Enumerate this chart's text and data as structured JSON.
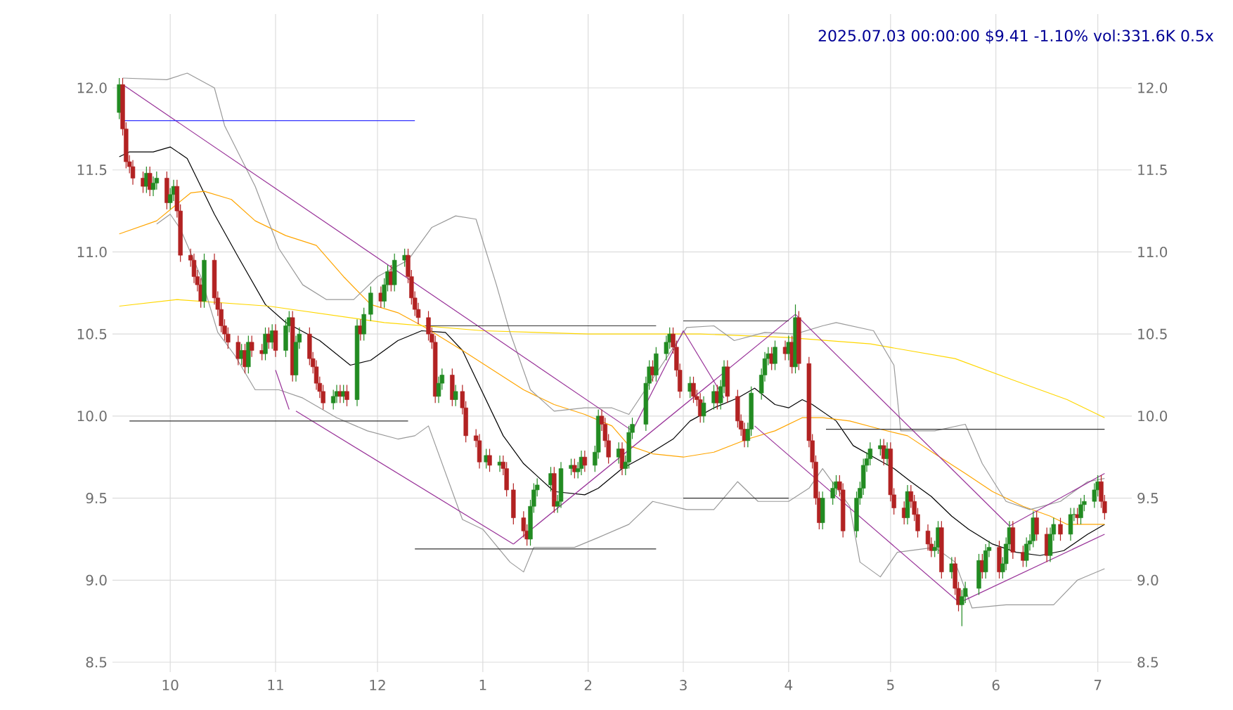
{
  "chart_data": {
    "type": "candlestick",
    "title": "2025.07.03 00:00:00 $9.41 -1.10% vol:331.6K 0.5x",
    "x": [
      "2024-09-16",
      "2024-09-17",
      "2024-09-18",
      "2024-09-19",
      "2024-09-20",
      "2024-09-23",
      "2024-09-24",
      "2024-09-25",
      "2024-09-26",
      "2024-09-27",
      "2024-09-30",
      "2024-10-01",
      "2024-10-02",
      "2024-10-03",
      "2024-10-04",
      "2024-10-07",
      "2024-10-08",
      "2024-10-09",
      "2024-10-10",
      "2024-10-11",
      "2024-10-14",
      "2024-10-15",
      "2024-10-16",
      "2024-10-17",
      "2024-10-18",
      "2024-10-21",
      "2024-10-22",
      "2024-10-23",
      "2024-10-24",
      "2024-10-25",
      "2024-10-28",
      "2024-10-29",
      "2024-10-30",
      "2024-10-31",
      "2024-11-01",
      "2024-11-04",
      "2024-11-05",
      "2024-11-06",
      "2024-11-07",
      "2024-11-08",
      "2024-11-11",
      "2024-11-12",
      "2024-11-13",
      "2024-11-14",
      "2024-11-15",
      "2024-11-18",
      "2024-11-19",
      "2024-11-20",
      "2024-11-21",
      "2024-11-22",
      "2024-11-25",
      "2024-11-26",
      "2024-11-27",
      "2024-11-29",
      "2024-12-02",
      "2024-12-03",
      "2024-12-04",
      "2024-12-05",
      "2024-12-06",
      "2024-12-09",
      "2024-12-10",
      "2024-12-11",
      "2024-12-12",
      "2024-12-13",
      "2024-12-16",
      "2024-12-17",
      "2024-12-18",
      "2024-12-19",
      "2024-12-20",
      "2024-12-23",
      "2024-12-24",
      "2024-12-26",
      "2024-12-27",
      "2024-12-30",
      "2024-12-31",
      "2025-01-02",
      "2025-01-03",
      "2025-01-06",
      "2025-01-07",
      "2025-01-08",
      "2025-01-10",
      "2025-01-13",
      "2025-01-14",
      "2025-01-15",
      "2025-01-16",
      "2025-01-17",
      "2025-01-21",
      "2025-01-22",
      "2025-01-23",
      "2025-01-24",
      "2025-01-27",
      "2025-01-28",
      "2025-01-29",
      "2025-01-30",
      "2025-01-31",
      "2025-02-03",
      "2025-02-04",
      "2025-02-05",
      "2025-02-06",
      "2025-02-07",
      "2025-02-10",
      "2025-02-11",
      "2025-02-12",
      "2025-02-13",
      "2025-02-14",
      "2025-02-18",
      "2025-02-19",
      "2025-02-20",
      "2025-02-21",
      "2025-02-24",
      "2025-02-25",
      "2025-02-26",
      "2025-02-27",
      "2025-02-28",
      "2025-03-03",
      "2025-03-04",
      "2025-03-05",
      "2025-03-06",
      "2025-03-07",
      "2025-03-10",
      "2025-03-11",
      "2025-03-12",
      "2025-03-13",
      "2025-03-14",
      "2025-03-17",
      "2025-03-18",
      "2025-03-19",
      "2025-03-20",
      "2025-03-21",
      "2025-03-24",
      "2025-03-25",
      "2025-03-26",
      "2025-03-27",
      "2025-03-28",
      "2025-03-31",
      "2025-04-01",
      "2025-04-02",
      "2025-04-03",
      "2025-04-04",
      "2025-04-07",
      "2025-04-08",
      "2025-04-09",
      "2025-04-10",
      "2025-04-11",
      "2025-04-14",
      "2025-04-15",
      "2025-04-16",
      "2025-04-17",
      "2025-04-21",
      "2025-04-22",
      "2025-04-23",
      "2025-04-24",
      "2025-04-25",
      "2025-04-28",
      "2025-04-29",
      "2025-04-30",
      "2025-05-01",
      "2025-05-02",
      "2025-05-05",
      "2025-05-06",
      "2025-05-07",
      "2025-05-08",
      "2025-05-09",
      "2025-05-12",
      "2025-05-13",
      "2025-05-14",
      "2025-05-15",
      "2025-05-16",
      "2025-05-19",
      "2025-05-20",
      "2025-05-21",
      "2025-05-22",
      "2025-05-23",
      "2025-05-27",
      "2025-05-28",
      "2025-05-29",
      "2025-05-30",
      "2025-06-02",
      "2025-06-03",
      "2025-06-04",
      "2025-06-05",
      "2025-06-06",
      "2025-06-09",
      "2025-06-10",
      "2025-06-11",
      "2025-06-12",
      "2025-06-13",
      "2025-06-16",
      "2025-06-17",
      "2025-06-18",
      "2025-06-20",
      "2025-06-23",
      "2025-06-24",
      "2025-06-25",
      "2025-06-26",
      "2025-06-27",
      "2025-06-30",
      "2025-07-01",
      "2025-07-02",
      "2025-07-03"
    ],
    "ohlc": [
      [
        11.85,
        12.06,
        11.81,
        12.02
      ],
      [
        12.02,
        12.06,
        11.71,
        11.75
      ],
      [
        11.75,
        11.79,
        11.51,
        11.55
      ],
      [
        11.55,
        11.59,
        11.48,
        11.52
      ],
      [
        11.52,
        11.56,
        11.41,
        11.45
      ],
      [
        11.45,
        11.49,
        11.36,
        11.4
      ],
      [
        11.4,
        11.52,
        11.36,
        11.48
      ],
      [
        11.48,
        11.52,
        11.34,
        11.38
      ],
      [
        11.38,
        11.46,
        11.34,
        11.42
      ],
      [
        11.42,
        11.49,
        11.38,
        11.45
      ],
      [
        11.45,
        11.49,
        11.26,
        11.3
      ],
      [
        11.3,
        11.39,
        11.26,
        11.35
      ],
      [
        11.35,
        11.44,
        11.31,
        11.4
      ],
      [
        11.4,
        11.44,
        11.21,
        11.25
      ],
      [
        11.25,
        11.29,
        10.94,
        10.98
      ],
      [
        10.98,
        11.02,
        10.91,
        10.95
      ],
      [
        10.95,
        10.99,
        10.81,
        10.85
      ],
      [
        10.85,
        10.89,
        10.76,
        10.8
      ],
      [
        10.8,
        10.84,
        10.66,
        10.7
      ],
      [
        10.7,
        10.99,
        10.66,
        10.95
      ],
      [
        10.95,
        10.99,
        10.68,
        10.72
      ],
      [
        10.72,
        10.76,
        10.61,
        10.65
      ],
      [
        10.65,
        10.69,
        10.51,
        10.55
      ],
      [
        10.55,
        10.59,
        10.46,
        10.5
      ],
      [
        10.5,
        10.54,
        10.41,
        10.45
      ],
      [
        10.45,
        10.49,
        10.31,
        10.35
      ],
      [
        10.35,
        10.44,
        10.31,
        10.4
      ],
      [
        10.4,
        10.44,
        10.26,
        10.3
      ],
      [
        10.3,
        10.49,
        10.26,
        10.45
      ],
      [
        10.45,
        10.49,
        10.36,
        10.4
      ],
      [
        10.4,
        10.44,
        10.34,
        10.38
      ],
      [
        10.38,
        10.54,
        10.34,
        10.5
      ],
      [
        10.5,
        10.54,
        10.41,
        10.45
      ],
      [
        10.45,
        10.56,
        10.41,
        10.52
      ],
      [
        10.52,
        10.56,
        10.36,
        10.4
      ],
      [
        10.4,
        10.59,
        10.36,
        10.55
      ],
      [
        10.55,
        10.64,
        10.51,
        10.6
      ],
      [
        10.6,
        10.64,
        10.21,
        10.25
      ],
      [
        10.25,
        10.49,
        10.21,
        10.45
      ],
      [
        10.45,
        10.54,
        10.41,
        10.5
      ],
      [
        10.5,
        10.54,
        10.31,
        10.35
      ],
      [
        10.35,
        10.39,
        10.26,
        10.3
      ],
      [
        10.3,
        10.34,
        10.16,
        10.2
      ],
      [
        10.2,
        10.24,
        10.11,
        10.15
      ],
      [
        10.15,
        10.19,
        10.04,
        10.08
      ],
      [
        10.08,
        10.16,
        10.04,
        10.12
      ],
      [
        10.12,
        10.19,
        10.08,
        10.15
      ],
      [
        10.15,
        10.19,
        10.08,
        10.12
      ],
      [
        10.12,
        10.19,
        10.08,
        10.15
      ],
      [
        10.15,
        10.19,
        10.06,
        10.1
      ],
      [
        10.1,
        10.59,
        10.06,
        10.55
      ],
      [
        10.55,
        10.59,
        10.46,
        10.5
      ],
      [
        10.5,
        10.66,
        10.46,
        10.62
      ],
      [
        10.62,
        10.79,
        10.58,
        10.75
      ],
      [
        10.75,
        10.79,
        10.66,
        10.7
      ],
      [
        10.7,
        10.84,
        10.66,
        10.8
      ],
      [
        10.8,
        10.92,
        10.76,
        10.88
      ],
      [
        10.88,
        10.92,
        10.76,
        10.8
      ],
      [
        10.8,
        10.99,
        10.76,
        10.95
      ],
      [
        10.95,
        11.02,
        10.91,
        10.98
      ],
      [
        10.98,
        11.02,
        10.81,
        10.85
      ],
      [
        10.85,
        10.89,
        10.68,
        10.72
      ],
      [
        10.72,
        10.76,
        10.61,
        10.65
      ],
      [
        10.65,
        10.69,
        10.56,
        10.6
      ],
      [
        10.6,
        10.64,
        10.46,
        10.5
      ],
      [
        10.5,
        10.54,
        10.41,
        10.45
      ],
      [
        10.45,
        10.49,
        10.08,
        10.12
      ],
      [
        10.12,
        10.24,
        10.08,
        10.2
      ],
      [
        10.2,
        10.29,
        10.16,
        10.25
      ],
      [
        10.25,
        10.29,
        10.06,
        10.1
      ],
      [
        10.1,
        10.19,
        10.06,
        10.15
      ],
      [
        10.15,
        10.19,
        10.01,
        10.05
      ],
      [
        10.05,
        10.09,
        9.84,
        9.88
      ],
      [
        9.88,
        9.92,
        9.81,
        9.85
      ],
      [
        9.85,
        9.89,
        9.68,
        9.72
      ],
      [
        9.72,
        9.8,
        9.68,
        9.76
      ],
      [
        9.76,
        9.8,
        9.66,
        9.7
      ],
      [
        9.7,
        9.76,
        9.66,
        9.72
      ],
      [
        9.72,
        9.76,
        9.64,
        9.68
      ],
      [
        9.68,
        9.72,
        9.51,
        9.55
      ],
      [
        9.55,
        9.59,
        9.34,
        9.38
      ],
      [
        9.38,
        9.42,
        9.26,
        9.3
      ],
      [
        9.3,
        9.34,
        9.21,
        9.25
      ],
      [
        9.25,
        9.49,
        9.21,
        9.45
      ],
      [
        9.45,
        9.59,
        9.41,
        9.55
      ],
      [
        9.55,
        9.62,
        9.51,
        9.58
      ],
      [
        9.58,
        9.69,
        9.54,
        9.65
      ],
      [
        9.65,
        9.69,
        9.41,
        9.45
      ],
      [
        9.45,
        9.52,
        9.41,
        9.48
      ],
      [
        9.48,
        9.72,
        9.44,
        9.68
      ],
      [
        9.68,
        9.74,
        9.64,
        9.7
      ],
      [
        9.7,
        9.74,
        9.62,
        9.66
      ],
      [
        9.66,
        9.72,
        9.62,
        9.68
      ],
      [
        9.68,
        9.79,
        9.64,
        9.75
      ],
      [
        9.75,
        9.79,
        9.66,
        9.7
      ],
      [
        9.7,
        9.82,
        9.66,
        9.78
      ],
      [
        9.78,
        10.04,
        9.74,
        10.0
      ],
      [
        10.0,
        10.04,
        9.91,
        9.95
      ],
      [
        9.95,
        9.99,
        9.81,
        9.85
      ],
      [
        9.85,
        9.89,
        9.71,
        9.75
      ],
      [
        9.75,
        9.84,
        9.71,
        9.8
      ],
      [
        9.8,
        9.84,
        9.64,
        9.68
      ],
      [
        9.68,
        9.76,
        9.64,
        9.72
      ],
      [
        9.72,
        9.94,
        9.68,
        9.9
      ],
      [
        9.9,
        9.99,
        9.86,
        9.95
      ],
      [
        9.95,
        10.24,
        9.91,
        10.2
      ],
      [
        10.2,
        10.34,
        10.16,
        10.3
      ],
      [
        10.3,
        10.34,
        10.21,
        10.25
      ],
      [
        10.25,
        10.42,
        10.21,
        10.38
      ],
      [
        10.38,
        10.49,
        10.34,
        10.45
      ],
      [
        10.45,
        10.54,
        10.41,
        10.5
      ],
      [
        10.5,
        10.54,
        10.38,
        10.42
      ],
      [
        10.42,
        10.46,
        10.24,
        10.28
      ],
      [
        10.28,
        10.32,
        10.11,
        10.15
      ],
      [
        10.15,
        10.24,
        10.11,
        10.2
      ],
      [
        10.2,
        10.24,
        10.08,
        10.12
      ],
      [
        10.12,
        10.16,
        10.06,
        10.1
      ],
      [
        10.1,
        10.14,
        9.96,
        10.0
      ],
      [
        10.0,
        10.12,
        9.96,
        10.08
      ],
      [
        10.08,
        10.19,
        10.04,
        10.15
      ],
      [
        10.15,
        10.19,
        10.04,
        10.08
      ],
      [
        10.08,
        10.22,
        10.04,
        10.18
      ],
      [
        10.18,
        10.34,
        10.14,
        10.3
      ],
      [
        10.3,
        10.34,
        10.08,
        10.12
      ],
      [
        10.12,
        10.16,
        9.93,
        9.97
      ],
      [
        9.97,
        10.01,
        9.88,
        9.92
      ],
      [
        9.92,
        9.96,
        9.81,
        9.85
      ],
      [
        9.85,
        9.96,
        9.81,
        9.92
      ],
      [
        9.92,
        10.18,
        9.88,
        10.14
      ],
      [
        10.14,
        10.29,
        10.1,
        10.25
      ],
      [
        10.25,
        10.39,
        10.21,
        10.35
      ],
      [
        10.35,
        10.42,
        10.31,
        10.38
      ],
      [
        10.38,
        10.42,
        10.28,
        10.32
      ],
      [
        10.32,
        10.46,
        10.28,
        10.42
      ],
      [
        10.42,
        10.46,
        10.34,
        10.38
      ],
      [
        10.38,
        10.49,
        10.34,
        10.45
      ],
      [
        10.45,
        10.49,
        10.26,
        10.3
      ],
      [
        10.3,
        10.68,
        10.26,
        10.6
      ],
      [
        10.6,
        10.64,
        10.28,
        10.32
      ],
      [
        10.32,
        10.36,
        9.81,
        9.85
      ],
      [
        9.85,
        9.89,
        9.68,
        9.72
      ],
      [
        9.72,
        9.76,
        9.46,
        9.5
      ],
      [
        9.5,
        9.54,
        9.31,
        9.35
      ],
      [
        9.35,
        9.54,
        9.31,
        9.5
      ],
      [
        9.5,
        9.6,
        9.46,
        9.56
      ],
      [
        9.56,
        9.64,
        9.52,
        9.6
      ],
      [
        9.6,
        9.64,
        9.51,
        9.55
      ],
      [
        9.55,
        9.59,
        9.26,
        9.3
      ],
      [
        9.3,
        9.54,
        9.26,
        9.5
      ],
      [
        9.5,
        9.6,
        9.46,
        9.56
      ],
      [
        9.56,
        9.74,
        9.52,
        9.7
      ],
      [
        9.7,
        9.78,
        9.66,
        9.74
      ],
      [
        9.74,
        9.84,
        9.7,
        9.8
      ],
      [
        9.8,
        9.86,
        9.76,
        9.82
      ],
      [
        9.82,
        9.86,
        9.7,
        9.74
      ],
      [
        9.74,
        9.84,
        9.7,
        9.8
      ],
      [
        9.8,
        9.84,
        9.48,
        9.52
      ],
      [
        9.52,
        9.56,
        9.4,
        9.44
      ],
      [
        9.44,
        9.48,
        9.34,
        9.38
      ],
      [
        9.38,
        9.58,
        9.34,
        9.54
      ],
      [
        9.54,
        9.58,
        9.44,
        9.48
      ],
      [
        9.48,
        9.52,
        9.36,
        9.4
      ],
      [
        9.4,
        9.44,
        9.26,
        9.3
      ],
      [
        9.3,
        9.34,
        9.18,
        9.22
      ],
      [
        9.22,
        9.26,
        9.14,
        9.18
      ],
      [
        9.18,
        9.24,
        9.14,
        9.2
      ],
      [
        9.2,
        9.36,
        9.16,
        9.32
      ],
      [
        9.32,
        9.36,
        9.01,
        9.05
      ],
      [
        9.05,
        9.14,
        9.01,
        9.1
      ],
      [
        9.1,
        9.14,
        8.91,
        8.95
      ],
      [
        8.95,
        8.99,
        8.81,
        8.85
      ],
      [
        8.85,
        8.94,
        8.72,
        8.9
      ],
      [
        8.9,
        8.99,
        8.86,
        8.95
      ],
      [
        8.95,
        9.16,
        8.91,
        9.12
      ],
      [
        9.12,
        9.16,
        9.01,
        9.05
      ],
      [
        9.05,
        9.22,
        9.01,
        9.18
      ],
      [
        9.18,
        9.24,
        9.14,
        9.2
      ],
      [
        9.2,
        9.24,
        9.01,
        9.05
      ],
      [
        9.05,
        9.14,
        9.01,
        9.1
      ],
      [
        9.1,
        9.26,
        9.06,
        9.22
      ],
      [
        9.22,
        9.36,
        9.18,
        9.32
      ],
      [
        9.32,
        9.36,
        9.13,
        9.17
      ],
      [
        9.17,
        9.21,
        9.08,
        9.12
      ],
      [
        9.12,
        9.26,
        9.08,
        9.22
      ],
      [
        9.22,
        9.28,
        9.18,
        9.24
      ],
      [
        9.24,
        9.42,
        9.2,
        9.38
      ],
      [
        9.38,
        9.42,
        9.24,
        9.28
      ],
      [
        9.28,
        9.32,
        9.11,
        9.15
      ],
      [
        9.15,
        9.32,
        9.11,
        9.28
      ],
      [
        9.28,
        9.38,
        9.24,
        9.34
      ],
      [
        9.34,
        9.38,
        9.24,
        9.28
      ],
      [
        9.28,
        9.44,
        9.24,
        9.4
      ],
      [
        9.4,
        9.44,
        9.36,
        9.4
      ],
      [
        9.4,
        9.44,
        9.34,
        9.38
      ],
      [
        9.38,
        9.5,
        9.34,
        9.46
      ],
      [
        9.46,
        9.52,
        9.42,
        9.48
      ],
      [
        9.48,
        9.59,
        9.44,
        9.55
      ],
      [
        9.55,
        9.64,
        9.51,
        9.6
      ],
      [
        9.6,
        9.64,
        9.44,
        9.48
      ],
      [
        9.48,
        9.52,
        9.37,
        9.41
      ]
    ],
    "series": [
      {
        "type": "line",
        "color": "#000000",
        "x": [
          "2024-09-16",
          "2024-09-19",
          "2024-09-26",
          "2024-10-01",
          "2024-10-06",
          "2024-10-14",
          "2024-10-21",
          "2024-10-29",
          "2024-11-04",
          "2024-11-14",
          "2024-11-23",
          "2024-11-29",
          "2024-12-01",
          "2024-12-07",
          "2024-12-14",
          "2024-12-21",
          "2024-12-26",
          "2025-01-01",
          "2025-01-07",
          "2025-01-13",
          "2025-01-22",
          "2025-01-31",
          "2025-02-04",
          "2025-02-11",
          "2025-02-19",
          "2025-02-26",
          "2025-03-03",
          "2025-03-10",
          "2025-03-17",
          "2025-03-22",
          "2025-03-28",
          "2025-04-01",
          "2025-04-05",
          "2025-04-08",
          "2025-04-15",
          "2025-04-20",
          "2025-04-26",
          "2025-05-02",
          "2025-05-07",
          "2025-05-13",
          "2025-05-19",
          "2025-05-24",
          "2025-05-31",
          "2025-06-07",
          "2025-06-14",
          "2025-06-21",
          "2025-06-28",
          "2025-07-03"
        ],
        "values": [
          11.58,
          11.61,
          11.61,
          11.64,
          11.57,
          11.23,
          10.97,
          10.68,
          10.57,
          10.46,
          10.31,
          10.34,
          10.37,
          10.46,
          10.52,
          10.51,
          10.4,
          10.14,
          9.88,
          9.71,
          9.54,
          9.52,
          9.56,
          9.68,
          9.77,
          9.86,
          9.97,
          10.05,
          10.11,
          10.17,
          10.07,
          10.05,
          10.1,
          10.07,
          9.97,
          9.82,
          9.75,
          9.68,
          9.6,
          9.51,
          9.39,
          9.31,
          9.22,
          9.17,
          9.15,
          9.18,
          9.28,
          9.34
        ]
      },
      {
        "type": "line",
        "color": "#ffa500",
        "x": [
          "2024-09-16",
          "2024-09-27",
          "2024-10-07",
          "2024-10-11",
          "2024-10-19",
          "2024-10-26",
          "2024-11-04",
          "2024-11-13",
          "2024-11-21",
          "2024-11-29",
          "2024-12-07",
          "2024-12-15",
          "2024-12-26",
          "2025-01-04",
          "2025-01-13",
          "2025-01-22",
          "2025-01-31",
          "2025-02-08",
          "2025-02-13",
          "2025-02-20",
          "2025-03-01",
          "2025-03-10",
          "2025-03-20",
          "2025-03-28",
          "2025-04-05",
          "2025-04-11",
          "2025-04-19",
          "2025-04-28",
          "2025-05-06",
          "2025-05-14",
          "2025-05-23",
          "2025-05-31",
          "2025-06-09",
          "2025-06-17",
          "2025-06-22",
          "2025-07-03"
        ],
        "values": [
          11.11,
          11.19,
          11.36,
          11.37,
          11.32,
          11.19,
          11.1,
          11.04,
          10.85,
          10.68,
          10.63,
          10.54,
          10.4,
          10.28,
          10.16,
          10.07,
          10.01,
          9.94,
          9.82,
          9.77,
          9.75,
          9.78,
          9.86,
          9.91,
          9.99,
          9.99,
          9.97,
          9.92,
          9.88,
          9.77,
          9.65,
          9.54,
          9.45,
          9.39,
          9.34,
          9.34
        ]
      },
      {
        "type": "line",
        "color": "#ffd700",
        "x": [
          "2024-09-16",
          "2024-10-03",
          "2024-10-30",
          "2024-12-03",
          "2025-01-01",
          "2025-02-01",
          "2025-03-06",
          "2025-03-31",
          "2025-04-25",
          "2025-05-20",
          "2025-06-06",
          "2025-06-22",
          "2025-07-03"
        ],
        "values": [
          10.67,
          10.71,
          10.67,
          10.57,
          10.52,
          10.5,
          10.5,
          10.48,
          10.44,
          10.35,
          10.22,
          10.1,
          9.99
        ]
      },
      {
        "type": "line",
        "color": "#999999",
        "x": [
          "2024-09-17",
          "2024-09-30",
          "2024-10-06",
          "2024-10-14",
          "2024-10-17",
          "2024-10-26",
          "2024-11-02",
          "2024-11-09",
          "2024-11-16",
          "2024-11-24",
          "2024-12-01",
          "2024-12-10",
          "2024-12-17",
          "2024-12-24",
          "2024-12-30",
          "2025-01-05",
          "2025-01-09",
          "2025-01-15",
          "2025-01-22",
          "2025-01-31",
          "2025-02-08",
          "2025-02-13",
          "2025-03-02",
          "2025-03-10",
          "2025-03-16",
          "2025-03-25",
          "2025-04-03",
          "2025-04-11",
          "2025-04-15",
          "2025-04-26",
          "2025-05-02",
          "2025-05-04",
          "2025-05-14",
          "2025-05-23",
          "2025-05-28",
          "2025-06-04",
          "2025-06-11",
          "2025-06-20",
          "2025-06-28",
          "2025-07-03"
        ],
        "values": [
          12.06,
          12.05,
          12.09,
          12.0,
          11.77,
          11.4,
          11.02,
          10.8,
          10.71,
          10.71,
          10.85,
          10.95,
          11.15,
          11.22,
          11.2,
          10.8,
          10.51,
          10.16,
          10.03,
          10.05,
          10.05,
          10.01,
          10.54,
          10.55,
          10.46,
          10.51,
          10.5,
          10.55,
          10.57,
          10.52,
          10.31,
          9.91,
          9.91,
          9.95,
          9.71,
          9.48,
          9.43,
          9.48,
          9.6,
          9.62
        ]
      },
      {
        "type": "line",
        "color": "#999999",
        "x": [
          "2024-09-27",
          "2024-10-01",
          "2024-10-04",
          "2024-10-10",
          "2024-10-15",
          "2024-10-20",
          "2024-10-26",
          "2024-11-02",
          "2024-11-09",
          "2024-11-19",
          "2024-11-28",
          "2024-12-07",
          "2024-12-12",
          "2024-12-16",
          "2024-12-26",
          "2025-01-01",
          "2025-01-09",
          "2025-01-13",
          "2025-01-16",
          "2025-01-28",
          "2025-02-04",
          "2025-02-13",
          "2025-02-20",
          "2025-03-02",
          "2025-03-10",
          "2025-03-17",
          "2025-03-23",
          "2025-04-01",
          "2025-04-07",
          "2025-04-11",
          "2025-04-19",
          "2025-04-22",
          "2025-04-28",
          "2025-05-03",
          "2025-05-14",
          "2025-05-20",
          "2025-05-25",
          "2025-06-04",
          "2025-06-18",
          "2025-06-25",
          "2025-07-03"
        ],
        "values": [
          11.17,
          11.23,
          11.14,
          10.85,
          10.51,
          10.37,
          10.16,
          10.16,
          10.11,
          9.99,
          9.91,
          9.86,
          9.88,
          9.94,
          9.37,
          9.31,
          9.11,
          9.05,
          9.2,
          9.2,
          9.26,
          9.34,
          9.48,
          9.43,
          9.43,
          9.6,
          9.48,
          9.48,
          9.56,
          9.68,
          9.45,
          9.11,
          9.02,
          9.17,
          9.2,
          9.11,
          8.83,
          8.85,
          8.85,
          9.0,
          9.07
        ]
      },
      {
        "type": "line",
        "color": "#993399",
        "x": [
          "2024-09-17",
          "2025-02-14"
        ],
        "values": [
          12.02,
          9.91
        ]
      },
      {
        "type": "line",
        "color": "#993399",
        "x": [
          "2024-11-01",
          "2024-11-05"
        ],
        "values": [
          10.28,
          10.04
        ]
      },
      {
        "type": "line",
        "color": "#993399",
        "x": [
          "2024-11-07",
          "2025-01-10"
        ],
        "values": [
          10.03,
          9.22
        ]
      },
      {
        "type": "line",
        "color": "#993399",
        "x": [
          "2025-01-10",
          "2025-04-03"
        ],
        "values": [
          9.22,
          10.62
        ]
      },
      {
        "type": "line",
        "color": "#993399",
        "x": [
          "2025-02-14",
          "2025-03-01"
        ],
        "values": [
          9.91,
          10.52
        ]
      },
      {
        "type": "line",
        "color": "#993399",
        "x": [
          "2025-03-01",
          "2025-03-13"
        ],
        "values": [
          10.52,
          10.11
        ]
      },
      {
        "type": "line",
        "color": "#993399",
        "x": [
          "2025-04-03",
          "2025-06-05"
        ],
        "values": [
          10.62,
          9.33
        ]
      },
      {
        "type": "line",
        "color": "#993399",
        "x": [
          "2025-03-22",
          "2025-05-22"
        ],
        "values": [
          9.94,
          8.85
        ]
      },
      {
        "type": "line",
        "color": "#993399",
        "x": [
          "2025-05-22",
          "2025-07-03"
        ],
        "values": [
          8.87,
          9.28
        ]
      },
      {
        "type": "line",
        "color": "#993399",
        "x": [
          "2025-06-05",
          "2025-07-03"
        ],
        "values": [
          9.33,
          9.65
        ]
      },
      {
        "type": "line",
        "color": "#3333ff",
        "x": [
          "2024-09-17",
          "2024-12-12"
        ],
        "values": [
          11.8,
          11.8
        ]
      },
      {
        "type": "line",
        "color": "#333333",
        "x": [
          "2024-09-19",
          "2024-12-10"
        ],
        "values": [
          9.97,
          9.97
        ]
      },
      {
        "type": "line",
        "color": "#333333",
        "x": [
          "2024-12-15",
          "2025-02-21"
        ],
        "values": [
          10.55,
          10.55
        ]
      },
      {
        "type": "line",
        "color": "#333333",
        "x": [
          "2024-12-12",
          "2025-02-21"
        ],
        "values": [
          9.19,
          9.19
        ]
      },
      {
        "type": "line",
        "color": "#333333",
        "x": [
          "2025-03-01",
          "2025-04-01"
        ],
        "values": [
          10.58,
          10.58
        ]
      },
      {
        "type": "line",
        "color": "#333333",
        "x": [
          "2025-03-01",
          "2025-04-01"
        ],
        "values": [
          9.5,
          9.5
        ]
      },
      {
        "type": "line",
        "color": "#333333",
        "x": [
          "2025-04-12",
          "2025-07-03"
        ],
        "values": [
          9.92,
          9.92
        ]
      }
    ],
    "xlim": [
      "2024-09-14",
      "2025-07-11"
    ],
    "xticks": [
      {
        "value": "2024-10-01",
        "label": "10"
      },
      {
        "value": "2024-11-01",
        "label": "11"
      },
      {
        "value": "2024-12-01",
        "label": "12"
      },
      {
        "value": "2025-01-01",
        "label": "1"
      },
      {
        "value": "2025-02-01",
        "label": "2"
      },
      {
        "value": "2025-03-01",
        "label": "3"
      },
      {
        "value": "2025-04-01",
        "label": "4"
      },
      {
        "value": "2025-05-01",
        "label": "5"
      },
      {
        "value": "2025-06-01",
        "label": "6"
      },
      {
        "value": "2025-07-01",
        "label": "7"
      }
    ],
    "ylim": [
      8.44,
      12.45
    ],
    "yticks": [
      8.5,
      {
        "value": 9,
        "label": "9.0"
      },
      9.5,
      {
        "value": 10,
        "label": "10.0"
      },
      10.5,
      {
        "value": 11,
        "label": "11.0"
      },
      11.5,
      {
        "value": 12,
        "label": "12.0"
      }
    ],
    "y2lim": [
      8.44,
      12.45
    ],
    "y2ticks": [
      8.5,
      {
        "value": 9,
        "label": "9.0"
      },
      9.5,
      {
        "value": 10,
        "label": "10.0"
      },
      10.5,
      {
        "value": 11,
        "label": "11.0"
      },
      11.5,
      {
        "value": 12,
        "label": "12.0"
      }
    ],
    "grid": true
  }
}
